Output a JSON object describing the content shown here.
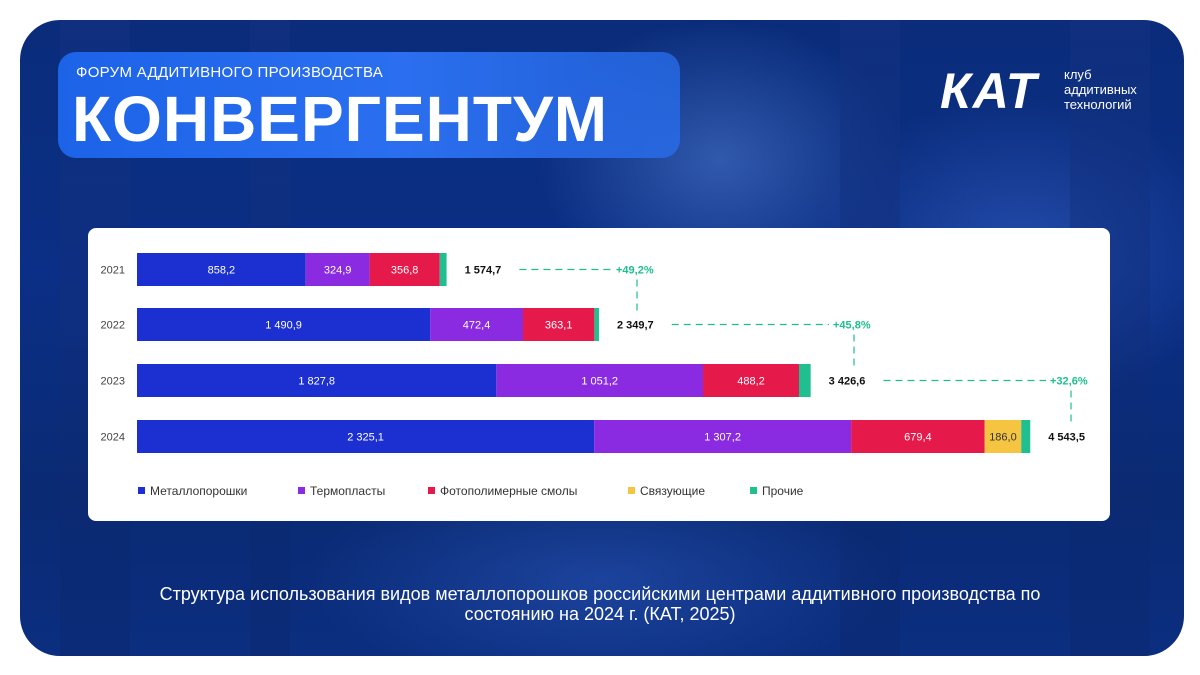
{
  "header": {
    "forum_label": "ФОРУМ АДДИТИВНОГО ПРОИЗВОДСТВА",
    "forum_name": "КОНВЕРГЕНТУМ",
    "logo_text": "КАТ",
    "logo_subtitle_1": "клуб",
    "logo_subtitle_2": "аддитивных",
    "logo_subtitle_3": "технологий"
  },
  "caption": "Структура использования видов металлопорошков российскими центрами аддитивного производства по состоянию на 2024 г. (КАТ, 2025)",
  "colors": {
    "metal": "#1c2fd0",
    "thermo": "#8a2be2",
    "photo": "#e6194b",
    "binder": "#f5c542",
    "other": "#1fbf8f",
    "growth": "#1fbf8f"
  },
  "chart_data": {
    "type": "bar",
    "orientation": "horizontal",
    "stacked": true,
    "categories": [
      "2021",
      "2022",
      "2023",
      "2024"
    ],
    "series": [
      {
        "name": "Металлопорошки",
        "color_key": "metal",
        "values": [
          858.2,
          1490.9,
          1827.8,
          2325.1
        ],
        "labels": [
          "858,2",
          "1 490,9",
          "1 827,8",
          "2 325,1"
        ]
      },
      {
        "name": "Термопласты",
        "color_key": "thermo",
        "values": [
          324.9,
          472.4,
          1051.2,
          1307.2
        ],
        "labels": [
          "324,9",
          "472,4",
          "1 051,2",
          "1 307,2"
        ]
      },
      {
        "name": "Фотополимерные смолы",
        "color_key": "photo",
        "values": [
          356.8,
          363.1,
          488.2,
          679.4
        ],
        "labels": [
          "356,8",
          "363,1",
          "488,2",
          "679,4"
        ]
      },
      {
        "name": "Связующие",
        "color_key": "binder",
        "values": [
          0,
          0,
          0,
          186.0
        ],
        "labels": [
          "",
          "",
          "",
          "186,0"
        ]
      },
      {
        "name": "Прочие",
        "color_key": "other",
        "values": [
          34.8,
          23.3,
          59.4,
          45.8
        ],
        "labels": [
          "",
          "",
          "",
          ""
        ]
      }
    ],
    "totals": [
      1574.7,
      2349.7,
      3426.6,
      4543.5
    ],
    "total_labels": [
      "1 574,7",
      "2 349,7",
      "3 426,6",
      "4 543,5"
    ],
    "growth_labels": [
      "+49,2%",
      "+45,8%",
      "+32,6%"
    ],
    "xlim": [
      0,
      4800
    ],
    "legend_position": "bottom"
  }
}
